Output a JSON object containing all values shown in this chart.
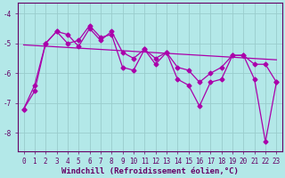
{
  "xlabel": "Windchill (Refroidissement éolien,°C)",
  "bg_color": "#b3e8e8",
  "line_color": "#aa00aa",
  "grid_color": "#99cccc",
  "axis_color": "#660066",
  "text_color": "#660066",
  "xlim": [
    -0.5,
    23.5
  ],
  "ylim": [
    -8.6,
    -3.65
  ],
  "yticks": [
    -8,
    -7,
    -6,
    -5,
    -4
  ],
  "xticks": [
    0,
    1,
    2,
    3,
    4,
    5,
    6,
    7,
    8,
    9,
    10,
    11,
    12,
    13,
    14,
    15,
    16,
    17,
    18,
    19,
    20,
    21,
    22,
    23
  ],
  "xtick_labels": [
    "0",
    "1",
    "2",
    "3",
    "4",
    "5",
    "6",
    "7",
    "8",
    "9",
    "10",
    "11",
    "12",
    "13",
    "14",
    "15",
    "16",
    "17",
    "18",
    "19",
    "20",
    "21",
    "22",
    "23"
  ],
  "series1_x": [
    0,
    1,
    2,
    3,
    4,
    5,
    6,
    7,
    8,
    9,
    10,
    11,
    12,
    13,
    14,
    15,
    16,
    17,
    18,
    19,
    20,
    21,
    22,
    23
  ],
  "series1_y": [
    -7.2,
    -6.6,
    -5.0,
    -4.6,
    -5.0,
    -4.9,
    -4.4,
    -4.8,
    -4.7,
    -5.8,
    -5.9,
    -5.2,
    -5.7,
    -5.3,
    -6.2,
    -6.4,
    -7.1,
    -6.3,
    -6.2,
    -5.4,
    -5.4,
    -6.2,
    -8.3,
    -6.3
  ],
  "series2_x": [
    0,
    1,
    2,
    3,
    4,
    5,
    6,
    7,
    8,
    9,
    10,
    11,
    12,
    13,
    14,
    15,
    16,
    17,
    18,
    19,
    20,
    21,
    22,
    23
  ],
  "series2_y": [
    -7.2,
    -6.4,
    -5.0,
    -4.6,
    -4.7,
    -5.1,
    -4.5,
    -4.9,
    -4.6,
    -5.3,
    -5.5,
    -5.2,
    -5.5,
    -5.3,
    -5.8,
    -5.9,
    -6.3,
    -6.0,
    -5.8,
    -5.4,
    -5.4,
    -5.7,
    -5.7,
    -6.3
  ],
  "trend_x": [
    0,
    23
  ],
  "trend_y": [
    -5.05,
    -5.55
  ],
  "marker": "D",
  "markersize": 2.5,
  "linewidth": 0.9,
  "xlabel_fontsize": 6.5,
  "tick_fontsize": 5.5
}
